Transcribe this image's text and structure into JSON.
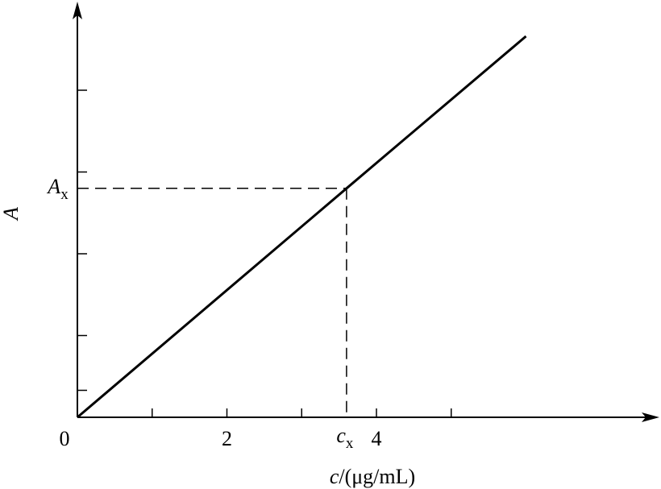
{
  "chart_data": {
    "type": "line",
    "x_label": {
      "italic": "c",
      "rest": "/(μg/mL)"
    },
    "y_label": "A",
    "x": [
      0,
      3.6,
      6
    ],
    "series": [
      {
        "color": "#000000",
        "values": [
          0,
          2.8,
          4.66
        ]
      }
    ],
    "xlim": [
      0,
      7.75
    ],
    "ylim": [
      0,
      5
    ],
    "xticks": [
      0,
      {
        "value": 1,
        "label": null
      },
      2,
      {
        "value": 3,
        "label": null
      },
      4,
      {
        "value": 5,
        "label": null
      }
    ],
    "yticks": [
      {
        "value": 0.33,
        "label": null
      },
      {
        "value": 1,
        "label": null
      },
      {
        "value": 2,
        "label": null
      },
      {
        "value": 3,
        "label": null
      },
      {
        "value": 4,
        "label": null
      }
    ],
    "marker": {
      "x": 3.6,
      "y": 2.8,
      "x_label": {
        "text": "c",
        "sub": "x"
      },
      "y_label": {
        "text": "A",
        "sub": "x"
      }
    },
    "grid": false
  }
}
